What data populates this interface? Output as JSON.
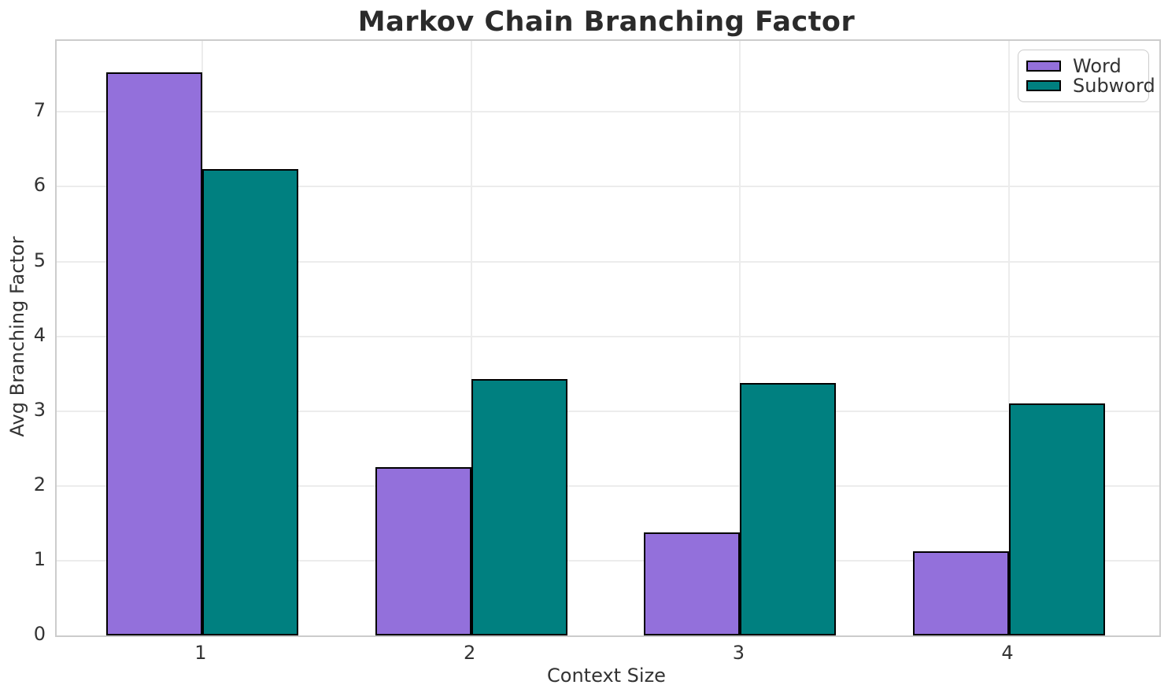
{
  "chart_data": {
    "type": "bar",
    "title": "Markov Chain Branching Factor",
    "xlabel": "Context Size",
    "ylabel": "Avg Branching Factor",
    "categories": [
      "1",
      "2",
      "3",
      "4"
    ],
    "series": [
      {
        "name": "Word",
        "color": "#9370DB",
        "values": [
          7.53,
          2.25,
          1.38,
          1.13
        ]
      },
      {
        "name": "Subword",
        "color": "#008080",
        "values": [
          6.24,
          3.43,
          3.38,
          3.1
        ]
      }
    ],
    "ylim": [
      0,
      7.95
    ],
    "yticks": [
      0,
      1,
      2,
      3,
      4,
      5,
      6,
      7
    ],
    "grid": true,
    "legend_position": "upper right",
    "bar_edge_color": "#000000",
    "colors": {
      "grid": "#ececec",
      "spine": "#cccccc",
      "text": "#333333",
      "title": "#2b2b2b"
    }
  }
}
